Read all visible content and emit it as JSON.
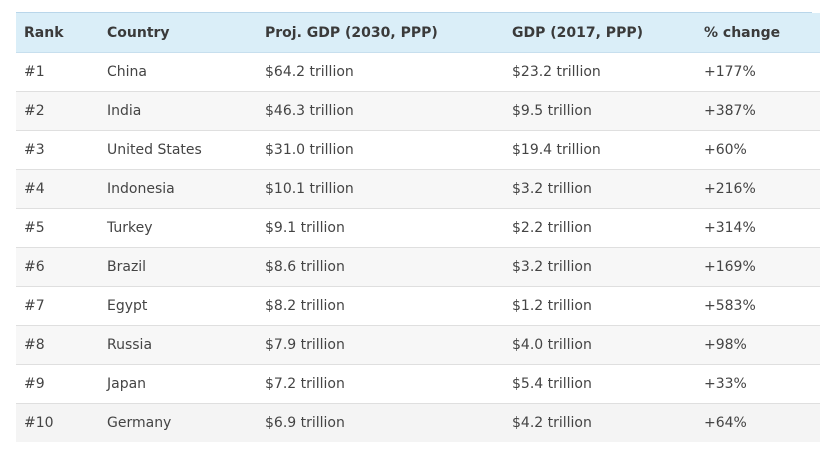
{
  "chart_data": {
    "type": "table",
    "columns": [
      "Rank",
      "Country",
      "Proj. GDP (2030, PPP)",
      "GDP (2017, PPP)",
      "% change"
    ],
    "rows": [
      [
        "#1",
        "China",
        "$64.2 trillion",
        "$23.2 trillion",
        "+177%"
      ],
      [
        "#2",
        "India",
        "$46.3 trillion",
        "$9.5 trillion",
        "+387%"
      ],
      [
        "#3",
        "United States",
        "$31.0 trillion",
        "$19.4 trillion",
        "+60%"
      ],
      [
        "#4",
        "Indonesia",
        "$10.1 trillion",
        "$3.2 trillion",
        "+216%"
      ],
      [
        "#5",
        "Turkey",
        "$9.1 trillion",
        "$2.2 trillion",
        "+314%"
      ],
      [
        "#6",
        "Brazil",
        "$8.6 trillion",
        "$3.2 trillion",
        "+169%"
      ],
      [
        "#7",
        "Egypt",
        "$8.2 trillion",
        "$1.2 trillion",
        "+583%"
      ],
      [
        "#8",
        "Russia",
        "$7.9 trillion",
        "$4.0 trillion",
        "+98%"
      ],
      [
        "#9",
        "Japan",
        "$7.2 trillion",
        "$5.4 trillion",
        "+33%"
      ],
      [
        "#10",
        "Germany",
        "$6.9 trillion",
        "$4.2 trillion",
        "+64%"
      ]
    ]
  },
  "colors": {
    "header_background": "#daeef8",
    "header_border": "#b9d6ea",
    "row_alt_background": "#f7f7f7",
    "text": "#444444"
  }
}
